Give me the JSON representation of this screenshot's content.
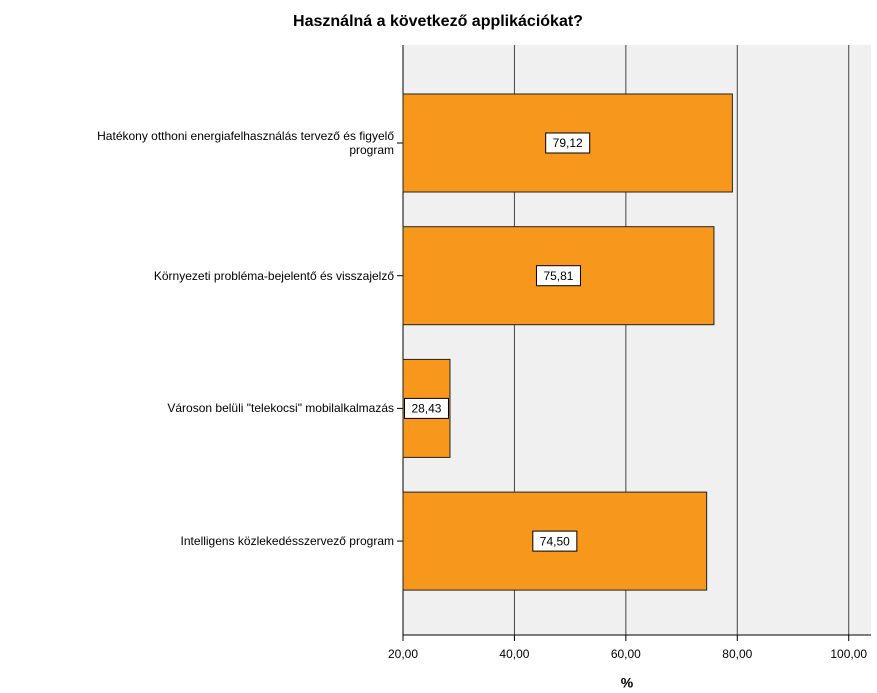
{
  "chart_data": {
    "type": "bar",
    "orientation": "horizontal",
    "title": "Használná a következő applikációkat?",
    "categories": [
      "Hatékony otthoni energiafelhasználás tervező és figyelő\nprogram",
      "Környezeti probléma-bejelentő és visszajelző",
      "Városon belüli \"telekocsi\" mobilalkalmazás",
      "Intelligens közlekedésszervező program"
    ],
    "values": [
      79.12,
      75.81,
      28.43,
      74.5
    ],
    "value_labels": [
      "79,12",
      "75,81",
      "28,43",
      "74,50"
    ],
    "color": "#f7981d",
    "xlabel": "%",
    "xlim": [
      20,
      104
    ],
    "xticks": [
      {
        "value": 20,
        "label": "20,00"
      },
      {
        "value": 40,
        "label": "40,00"
      },
      {
        "value": 60,
        "label": "60,00"
      },
      {
        "value": 80,
        "label": "80,00"
      },
      {
        "value": 100,
        "label": "100,00"
      }
    ],
    "grid": true
  }
}
